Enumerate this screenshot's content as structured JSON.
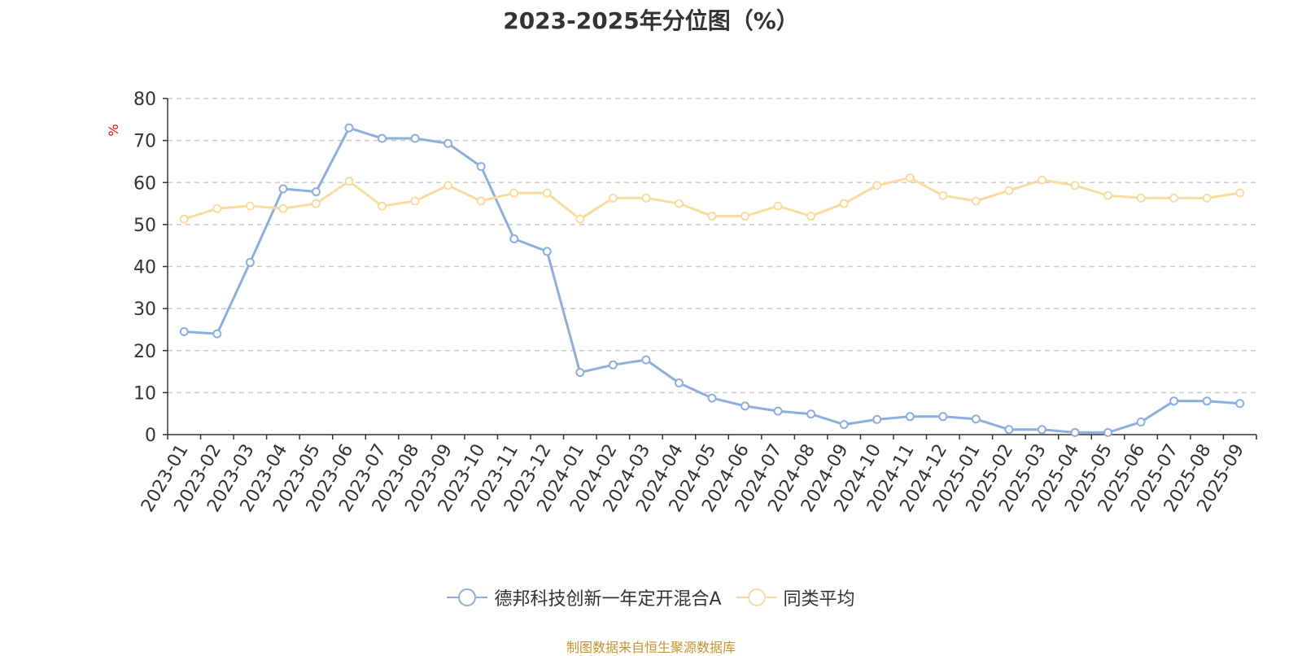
{
  "chart_data": {
    "type": "line",
    "title": "2023-2025年分位图（%）",
    "ylabel": "%",
    "xlabel": "",
    "ylim": [
      0,
      80
    ],
    "yticks": [
      0,
      10,
      20,
      30,
      40,
      50,
      60,
      70,
      80
    ],
    "grid": "horizontal dashed",
    "legend_position": "bottom",
    "categories": [
      "2023-01",
      "2023-02",
      "2023-03",
      "2023-04",
      "2023-05",
      "2023-06",
      "2023-07",
      "2023-08",
      "2023-09",
      "2023-10",
      "2023-11",
      "2023-12",
      "2024-01",
      "2024-02",
      "2024-03",
      "2024-04",
      "2024-05",
      "2024-06",
      "2024-07",
      "2024-08",
      "2024-09",
      "2024-10",
      "2024-11",
      "2024-12",
      "2025-01",
      "2025-02",
      "2025-03",
      "2025-04",
      "2025-05",
      "2025-06",
      "2025-07",
      "2025-08",
      "2025-09"
    ],
    "series": [
      {
        "name": "德邦科技创新一年定开混合A",
        "color": "#8eaedb",
        "values": [
          24.5,
          24.0,
          41.0,
          58.5,
          57.8,
          73.0,
          70.5,
          70.5,
          69.3,
          63.8,
          46.6,
          43.6,
          14.8,
          16.6,
          17.8,
          12.3,
          8.7,
          6.8,
          5.6,
          4.9,
          2.4,
          3.6,
          4.3,
          4.3,
          3.7,
          1.2,
          1.2,
          0.5,
          0.5,
          3.0,
          8.0,
          8.0,
          7.4
        ]
      },
      {
        "name": "同类平均",
        "color": "#f9dba0",
        "values": [
          51.3,
          53.8,
          54.4,
          53.8,
          55.0,
          60.3,
          54.4,
          55.6,
          59.3,
          55.6,
          57.5,
          57.5,
          51.3,
          56.3,
          56.3,
          55.0,
          52.0,
          52.0,
          54.4,
          52.0,
          55.0,
          59.3,
          61.1,
          56.9,
          55.6,
          58.1,
          60.6,
          59.3,
          56.9,
          56.3,
          56.3,
          56.3,
          57.5
        ]
      }
    ]
  },
  "source_text": "制图数据来自恒生聚源数据库"
}
